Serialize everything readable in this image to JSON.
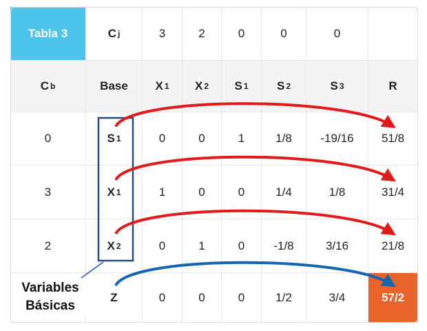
{
  "table": {
    "title": "Tabla 3",
    "cj_row": {
      "label": {
        "main": "C",
        "sub": "j"
      },
      "values": [
        "3",
        "2",
        "0",
        "0",
        "0"
      ]
    },
    "header": [
      {
        "main": "C",
        "sub": "b"
      },
      {
        "main": "Base"
      },
      {
        "main": "X",
        "sub": "1"
      },
      {
        "main": "X",
        "sub": "2"
      },
      {
        "main": "S",
        "sub": "1"
      },
      {
        "main": "S",
        "sub": "2"
      },
      {
        "main": "S",
        "sub": "3"
      },
      {
        "main": "R"
      }
    ],
    "rows": [
      {
        "cb": "0",
        "base": {
          "main": "S",
          "sub": "1"
        },
        "values": [
          "0",
          "0",
          "1",
          "1/8",
          "-19/16"
        ],
        "r": "51/8"
      },
      {
        "cb": "3",
        "base": {
          "main": "X",
          "sub": "1"
        },
        "values": [
          "1",
          "0",
          "0",
          "1/4",
          "1/8"
        ],
        "r": "31/4"
      },
      {
        "cb": "2",
        "base": {
          "main": "X",
          "sub": "2"
        },
        "values": [
          "0",
          "1",
          "0",
          "-1/8",
          "3/16"
        ],
        "r": "21/8"
      },
      {
        "cb": null,
        "base": {
          "main": "Z"
        },
        "values": [
          "0",
          "0",
          "0",
          "1/2",
          "3/4"
        ],
        "r": "57/2"
      }
    ],
    "annotation": "Variables Básicas"
  }
}
